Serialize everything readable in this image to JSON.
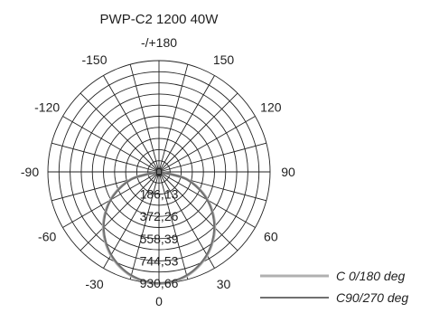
{
  "chart_data": {
    "type": "polar",
    "title": "PWP-C2 1200 40W",
    "angle_labels": [
      {
        "deg": 180,
        "text": "-/+180"
      },
      {
        "deg": 150,
        "text": "150"
      },
      {
        "deg": 120,
        "text": "120"
      },
      {
        "deg": 90,
        "text": "90"
      },
      {
        "deg": 60,
        "text": "60"
      },
      {
        "deg": 30,
        "text": "30"
      },
      {
        "deg": 0,
        "text": "0"
      },
      {
        "deg": -30,
        "text": "-30"
      },
      {
        "deg": -60,
        "text": "-60"
      },
      {
        "deg": -90,
        "text": "-90"
      },
      {
        "deg": -120,
        "text": "-120"
      },
      {
        "deg": -150,
        "text": "-150"
      }
    ],
    "radial_ticks": [
      0,
      186.13,
      372.26,
      558.39,
      744.53,
      930.66
    ],
    "radial_tick_labels": [
      "0",
      "186,13",
      "372,26",
      "558,39",
      "744,53",
      "930,66"
    ],
    "rmax": 930.66,
    "ring_count": 10,
    "spoke_step_deg": 15,
    "legend_position": "bottom-right",
    "series": [
      {
        "name": "C  0/180 deg",
        "color": "#b0b0b0",
        "angles": [
          -90,
          -75,
          -60,
          -45,
          -30,
          -15,
          0,
          15,
          30,
          45,
          60,
          75,
          90
        ],
        "values": [
          0,
          245,
          470,
          660,
          805,
          900,
          935,
          900,
          805,
          660,
          470,
          245,
          0
        ]
      },
      {
        "name": "C90/270 deg",
        "color": "#707070",
        "angles": [
          -90,
          -75,
          -60,
          -45,
          -30,
          -15,
          0,
          15,
          30,
          45,
          60,
          75,
          90
        ],
        "values": [
          0,
          240,
          465,
          655,
          800,
          895,
          930,
          895,
          800,
          655,
          465,
          240,
          0
        ]
      }
    ]
  }
}
